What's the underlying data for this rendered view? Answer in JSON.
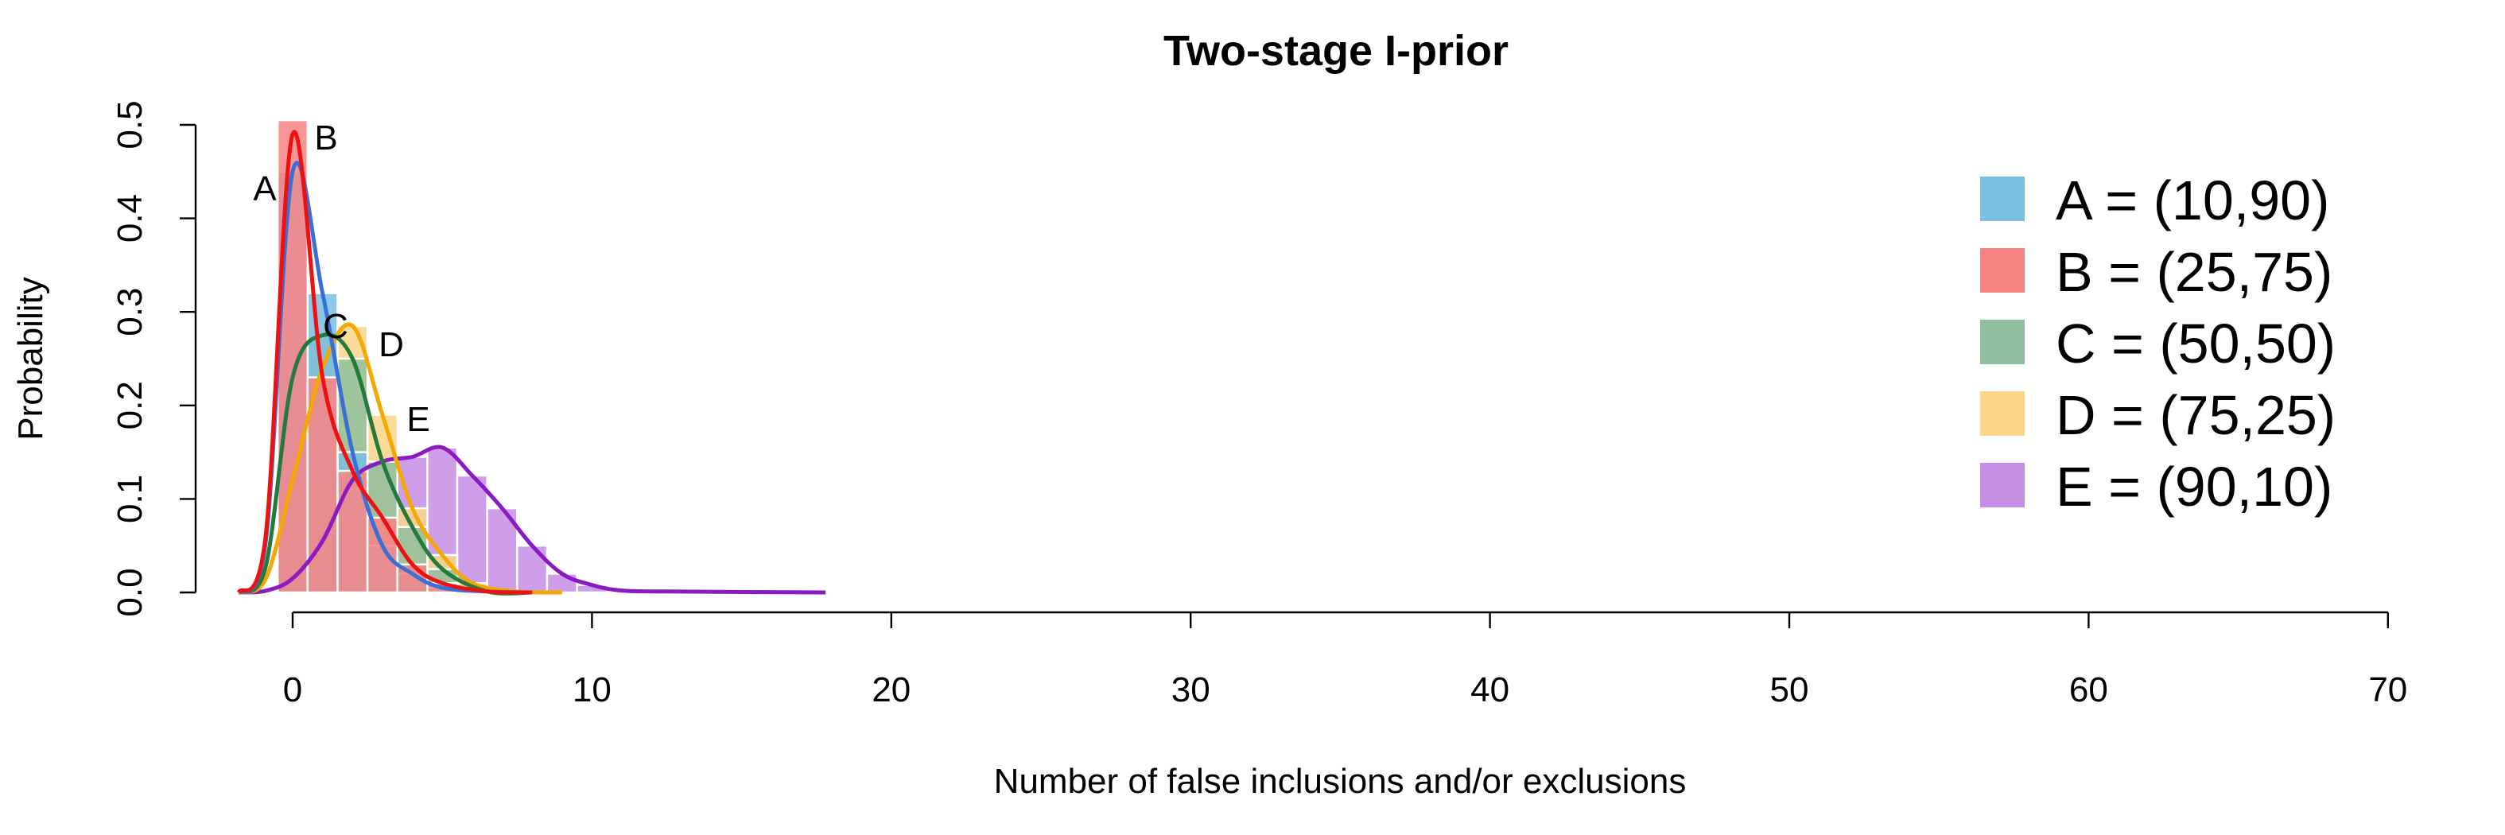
{
  "chart_data": {
    "type": "bar",
    "title": "Two-stage I-prior",
    "xlabel": "Number of false inclusions and/or exclusions",
    "ylabel": "Probability",
    "xlim": [
      0,
      70
    ],
    "ylim": [
      0,
      0.5
    ],
    "x_ticks": [
      0,
      10,
      20,
      30,
      40,
      50,
      60,
      70
    ],
    "y_ticks": [
      "0.0",
      "0.1",
      "0.2",
      "0.3",
      "0.4",
      "0.5"
    ],
    "legend_position": "right",
    "series": [
      {
        "name": "A = (10,90)",
        "label": "A",
        "bar_color": "#79c0e2",
        "line_color": "#3a6fd8",
        "x": [
          0,
          1,
          2,
          3,
          4,
          5
        ],
        "values": [
          0.45,
          0.32,
          0.15,
          0.05,
          0.02,
          0.005
        ],
        "curve_peak": 0.45
      },
      {
        "name": "B = (25,75)",
        "label": "B",
        "bar_color": "#f98383",
        "line_color": "#ee1111",
        "x": [
          0,
          1,
          2,
          3,
          4,
          5
        ],
        "values": [
          0.505,
          0.23,
          0.13,
          0.08,
          0.03,
          0.01
        ],
        "curve_peak": 0.49
      },
      {
        "name": "C = (50,50)",
        "label": "C",
        "bar_color": "#8fbf9c",
        "line_color": "#237a3a",
        "x": [
          0,
          1,
          2,
          3,
          4,
          5
        ],
        "values": [
          0.23,
          0.275,
          0.25,
          0.14,
          0.07,
          0.025
        ],
        "curve_peak": 0.28
      },
      {
        "name": "D = (75,25)",
        "label": "D",
        "bar_color": "#fad58a",
        "line_color": "#f5a800",
        "x": [
          0,
          1,
          2,
          3,
          4,
          5,
          6
        ],
        "values": [
          0.12,
          0.24,
          0.285,
          0.19,
          0.09,
          0.04,
          0.01
        ],
        "curve_peak": 0.27
      },
      {
        "name": "E = (90,10)",
        "label": "E",
        "bar_color": "#c58ee4",
        "line_color": "#8a1bc2",
        "x": [
          0,
          1,
          2,
          3,
          4,
          5,
          6,
          7,
          8,
          9,
          10,
          11
        ],
        "values": [
          0.015,
          0.055,
          0.12,
          0.14,
          0.145,
          0.155,
          0.125,
          0.09,
          0.05,
          0.02,
          0.008,
          0.002
        ],
        "curve_peak": 0.16
      }
    ]
  }
}
